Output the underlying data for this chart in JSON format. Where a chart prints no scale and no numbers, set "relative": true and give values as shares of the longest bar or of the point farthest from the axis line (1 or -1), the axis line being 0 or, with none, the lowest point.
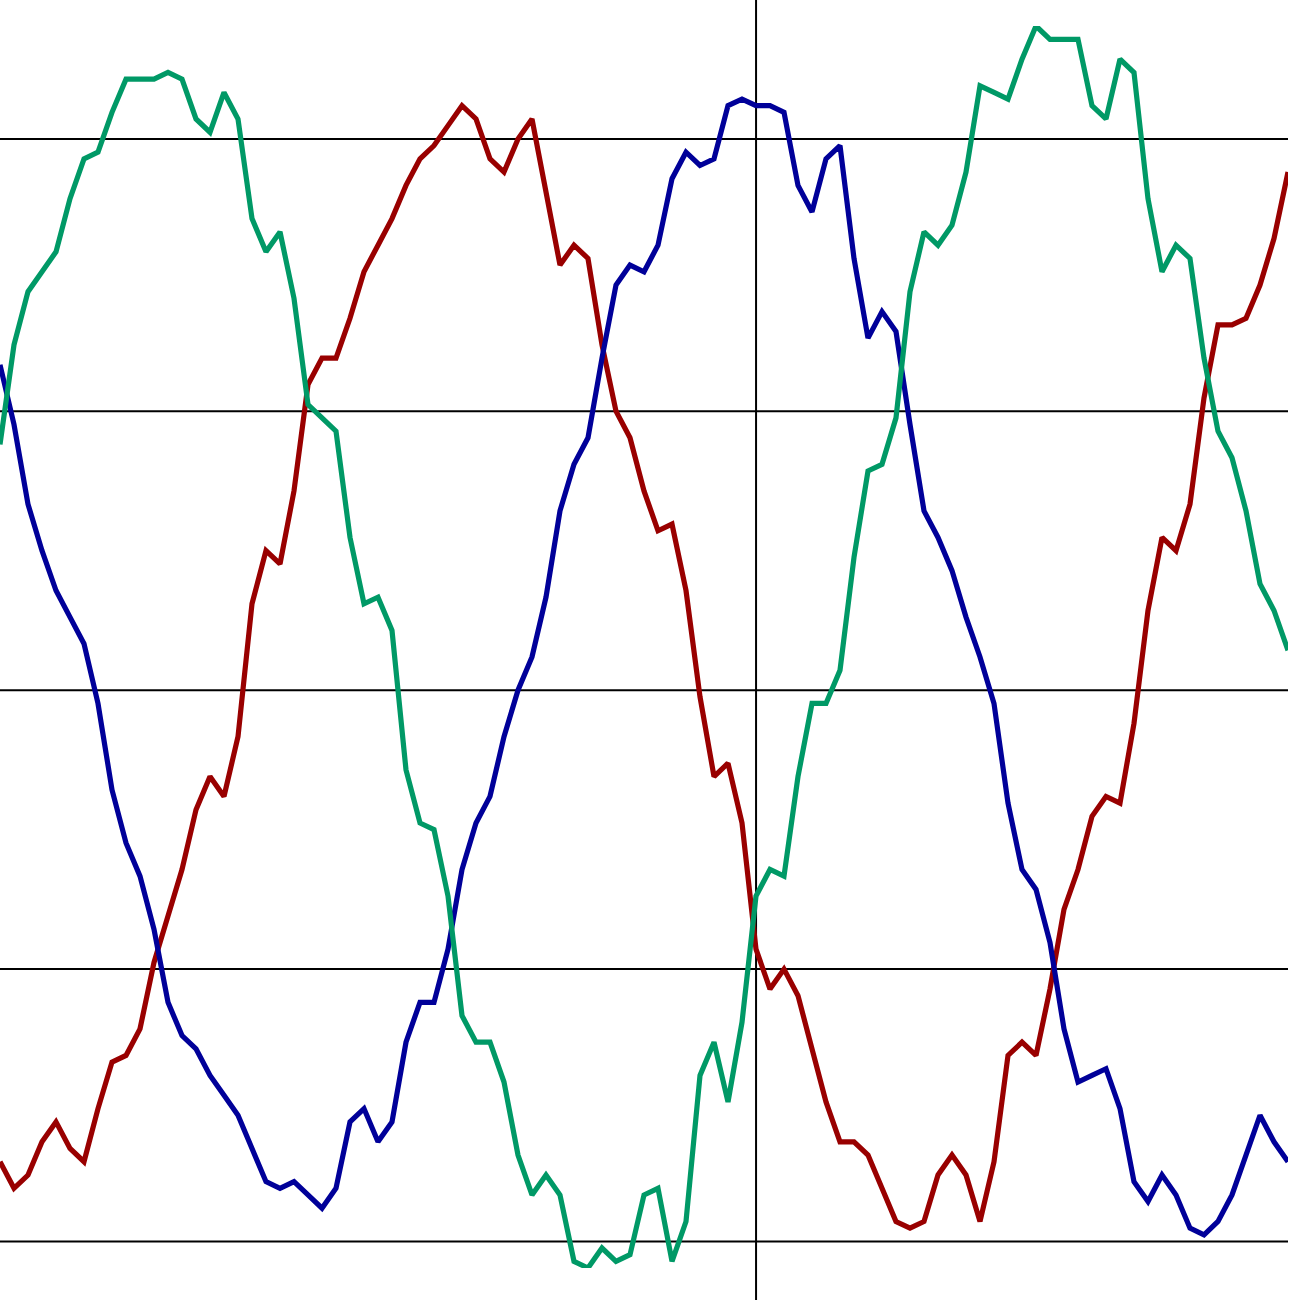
{
  "chart_data": {
    "type": "line",
    "relative": true,
    "ref_lines": [
      {
        "axis": "y",
        "value": 0.83,
        "color": "#000000"
      },
      {
        "axis": "y",
        "value": 0.42,
        "color": "#000000"
      },
      {
        "axis": "y",
        "value": 0,
        "color": "#000000"
      },
      {
        "axis": "y",
        "value": -0.42,
        "color": "#000000"
      },
      {
        "axis": "y",
        "value": -0.83,
        "color": "#000000"
      }
    ],
    "categories": [
      null,
      null,
      null,
      null,
      null,
      null,
      null,
      null,
      null,
      null,
      null,
      null,
      null,
      null,
      null,
      null,
      null,
      null,
      null,
      null,
      null,
      null,
      null,
      null,
      null,
      null,
      null,
      null,
      null,
      null,
      null,
      null,
      null,
      null,
      null,
      null,
      null,
      null,
      null,
      null,
      null,
      null,
      null,
      null,
      null,
      null,
      null,
      null,
      null,
      null,
      null,
      null,
      null,
      null,
      null,
      null,
      null,
      null,
      null,
      null,
      null,
      null,
      null,
      null,
      null,
      null,
      null,
      null,
      null,
      null,
      null,
      null,
      null,
      null,
      null,
      null,
      null,
      null,
      null,
      null,
      null,
      null,
      null,
      null,
      null,
      null,
      null,
      null,
      null,
      null,
      null,
      null,
      null
    ],
    "series": [
      {
        "color": "#990000",
        "values": [
          -0.71,
          -0.75,
          -0.73,
          -0.68,
          -0.65,
          -0.69,
          -0.71,
          -0.63,
          -0.56,
          -0.55,
          -0.51,
          -0.41,
          -0.34,
          -0.27,
          -0.18,
          -0.13,
          -0.16,
          -0.07,
          0.13,
          0.21,
          0.19,
          0.3,
          0.46,
          0.5,
          0.5,
          0.56,
          0.63,
          0.67,
          0.71,
          0.76,
          0.8,
          0.82,
          0.85,
          0.88,
          0.86,
          0.8,
          0.78,
          0.83,
          0.86,
          0.75,
          0.64,
          0.67,
          0.65,
          0.52,
          0.42,
          0.38,
          0.3,
          0.24,
          0.25,
          0.15,
          -0.01,
          -0.13,
          -0.11,
          -0.2,
          -0.39,
          -0.45,
          -0.42,
          -0.46,
          -0.54,
          -0.62,
          -0.68,
          -0.68,
          -0.7,
          -0.75,
          -0.8,
          -0.81,
          -0.8,
          -0.73,
          -0.7,
          -0.73,
          -0.8,
          -0.71,
          -0.55,
          -0.53,
          -0.55,
          -0.45,
          -0.33,
          -0.27,
          -0.19,
          -0.16,
          -0.17,
          -0.05,
          0.12,
          0.23,
          0.21,
          0.28,
          0.44,
          0.55,
          0.55,
          0.56,
          0.61,
          0.68,
          0.78
        ]
      },
      {
        "color": "#000099",
        "values": [
          0.49,
          0.4,
          0.28,
          0.21,
          0.15,
          0.11,
          0.07,
          -0.02,
          -0.15,
          -0.23,
          -0.28,
          -0.36,
          -0.47,
          -0.52,
          -0.54,
          -0.58,
          -0.61,
          -0.64,
          -0.69,
          -0.74,
          -0.75,
          -0.74,
          -0.76,
          -0.78,
          -0.75,
          -0.65,
          -0.63,
          -0.68,
          -0.65,
          -0.53,
          -0.47,
          -0.47,
          -0.39,
          -0.27,
          -0.2,
          -0.16,
          -0.07,
          0.0,
          0.05,
          0.14,
          0.27,
          0.34,
          0.38,
          0.5,
          0.61,
          0.64,
          0.63,
          0.67,
          0.77,
          0.81,
          0.79,
          0.8,
          0.88,
          0.89,
          0.88,
          0.88,
          0.87,
          0.76,
          0.72,
          0.8,
          0.82,
          0.65,
          0.53,
          0.57,
          0.54,
          0.4,
          0.27,
          0.23,
          0.18,
          0.11,
          0.05,
          -0.02,
          -0.17,
          -0.27,
          -0.3,
          -0.38,
          -0.51,
          -0.59,
          -0.58,
          -0.57,
          -0.63,
          -0.74,
          -0.77,
          -0.73,
          -0.76,
          -0.81,
          -0.82,
          -0.8,
          -0.76,
          -0.7,
          -0.64,
          -0.68,
          -0.71
        ]
      },
      {
        "color": "#009966",
        "values": [
          0.37,
          0.52,
          0.6,
          0.63,
          0.66,
          0.74,
          0.8,
          0.81,
          0.87,
          0.92,
          0.92,
          0.92,
          0.93,
          0.92,
          0.86,
          0.84,
          0.9,
          0.86,
          0.71,
          0.66,
          0.69,
          0.59,
          0.43,
          0.41,
          0.39,
          0.23,
          0.13,
          0.14,
          0.09,
          -0.12,
          -0.2,
          -0.21,
          -0.31,
          -0.49,
          -0.53,
          -0.53,
          -0.59,
          -0.7,
          -0.76,
          -0.73,
          -0.76,
          -0.86,
          -0.87,
          -0.84,
          -0.86,
          -0.85,
          -0.76,
          -0.75,
          -0.86,
          -0.8,
          -0.58,
          -0.53,
          -0.62,
          -0.5,
          -0.31,
          -0.27,
          -0.28,
          -0.13,
          -0.02,
          -0.02,
          0.03,
          0.2,
          0.33,
          0.34,
          0.41,
          0.6,
          0.69,
          0.67,
          0.7,
          0.78,
          0.91,
          0.9,
          0.89,
          0.95,
          1.0,
          0.98,
          0.98,
          0.98,
          0.88,
          0.86,
          0.95,
          0.93,
          0.74,
          0.63,
          0.67,
          0.65,
          0.5,
          0.39,
          0.35,
          0.27,
          0.16,
          0.12,
          0.06
        ]
      }
    ]
  }
}
